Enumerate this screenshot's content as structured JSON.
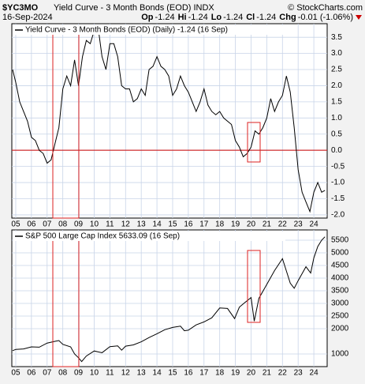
{
  "header": {
    "symbol": "$YC3MO",
    "name": "Yield Curve - 3 Month Bonds (EOD) INDX",
    "source": "© StockCharts.com",
    "date": "16-Sep-2024",
    "quote": [
      {
        "label": "Op",
        "value": "-1.24"
      },
      {
        "label": "Hi",
        "value": "-1.24"
      },
      {
        "label": "Lo",
        "value": "-1.24"
      },
      {
        "label": "Cl",
        "value": "-1.24"
      },
      {
        "label": "Chg",
        "value": "-0.01 (-1.06%)"
      }
    ]
  },
  "chart_data": [
    {
      "type": "line",
      "title": "Yield Curve - 3 Month Bonds (EOD) (Daily) -1.24 (16 Sep)",
      "color": "#000000",
      "grid": true,
      "hline": 0,
      "hline_color": "#cc0000",
      "xlim": [
        2004.75,
        2024.85
      ],
      "xticks": [
        {
          "value": 2005,
          "label": "05"
        },
        {
          "value": 2006,
          "label": "06"
        },
        {
          "value": 2007,
          "label": "07"
        },
        {
          "value": 2008,
          "label": "08"
        },
        {
          "value": 2009,
          "label": "09"
        },
        {
          "value": 2010,
          "label": "10"
        },
        {
          "value": 2011,
          "label": "11"
        },
        {
          "value": 2012,
          "label": "12"
        },
        {
          "value": 2013,
          "label": "13"
        },
        {
          "value": 2014,
          "label": "14"
        },
        {
          "value": 2015,
          "label": "15"
        },
        {
          "value": 2016,
          "label": "16"
        },
        {
          "value": 2017,
          "label": "17"
        },
        {
          "value": 2018,
          "label": "18"
        },
        {
          "value": 2019,
          "label": "19"
        },
        {
          "value": 2020,
          "label": "20"
        },
        {
          "value": 2021,
          "label": "21"
        },
        {
          "value": 2022,
          "label": "22"
        },
        {
          "value": 2023,
          "label": "23"
        },
        {
          "value": 2024,
          "label": "24"
        }
      ],
      "ylim": [
        -2.1,
        3.92
      ],
      "yticks": [
        3.5,
        {
          "value": 3,
          "label": "3.0"
        },
        2.5,
        {
          "value": 2,
          "label": "2.0"
        },
        1.5,
        {
          "value": 1,
          "label": "1.0"
        },
        0.5,
        {
          "value": 0,
          "label": "0.0"
        },
        -0.5,
        {
          "value": -1,
          "label": "-1.0"
        },
        -1.5,
        {
          "value": -2,
          "label": "-2.0"
        }
      ],
      "x": [
        2004.8,
        2005,
        2005.25,
        2005.5,
        2005.75,
        2006,
        2006.25,
        2006.5,
        2006.75,
        2007,
        2007.25,
        2007.5,
        2007.75,
        2008,
        2008.25,
        2008.5,
        2008.75,
        2009,
        2009.25,
        2009.5,
        2009.75,
        2010,
        2010.25,
        2010.5,
        2010.75,
        2011,
        2011.25,
        2011.5,
        2011.75,
        2012,
        2012.25,
        2012.5,
        2012.75,
        2013,
        2013.25,
        2013.5,
        2013.75,
        2014,
        2014.25,
        2014.5,
        2014.75,
        2015,
        2015.25,
        2015.5,
        2015.75,
        2016,
        2016.25,
        2016.5,
        2016.75,
        2017,
        2017.25,
        2017.5,
        2017.75,
        2018,
        2018.25,
        2018.5,
        2018.75,
        2019,
        2019.25,
        2019.5,
        2019.75,
        2020,
        2020.25,
        2020.5,
        2020.75,
        2021,
        2021.25,
        2021.5,
        2021.75,
        2022,
        2022.25,
        2022.5,
        2022.75,
        2023,
        2023.25,
        2023.5,
        2023.75,
        2024,
        2024.25,
        2024.5,
        2024.71
      ],
      "values": [
        2.5,
        2.1,
        1.5,
        1.2,
        0.9,
        0.4,
        0.3,
        0,
        -0.1,
        -0.4,
        -0.3,
        0.2,
        0.7,
        1.9,
        2.3,
        2,
        2.8,
        2,
        2.9,
        3.4,
        3.3,
        3.7,
        3.8,
        2.9,
        2.5,
        3.3,
        3.3,
        2.9,
        2,
        1.9,
        1.9,
        1.5,
        1.6,
        1.9,
        1.7,
        2.5,
        2.6,
        2.9,
        2.6,
        2.5,
        2.3,
        1.7,
        1.9,
        2.3,
        2,
        1.8,
        1.5,
        1.2,
        1.5,
        1.9,
        1.4,
        1.2,
        1.1,
        1.2,
        1,
        0.9,
        0.8,
        0.3,
        0.1,
        -0.2,
        -0.1,
        0.1,
        0.6,
        0.5,
        0.7,
        1,
        1.6,
        1.2,
        1.5,
        1.7,
        2.3,
        1.8,
        0.7,
        -0.6,
        -1.3,
        -1.6,
        -1.9,
        -1.3,
        -1,
        -1.3,
        -1.24
      ]
    },
    {
      "type": "line",
      "title": "S&P 500 Large Cap Index 5633.09 (16 Sep)",
      "color": "#000000",
      "grid": true,
      "xlim": [
        2004.75,
        2024.85
      ],
      "xticks": [
        {
          "value": 2005,
          "label": "05"
        },
        {
          "value": 2006,
          "label": "06"
        },
        {
          "value": 2007,
          "label": "07"
        },
        {
          "value": 2008,
          "label": "08"
        },
        {
          "value": 2009,
          "label": "09"
        },
        {
          "value": 2010,
          "label": "10"
        },
        {
          "value": 2011,
          "label": "11"
        },
        {
          "value": 2012,
          "label": "12"
        },
        {
          "value": 2013,
          "label": "13"
        },
        {
          "value": 2014,
          "label": "14"
        },
        {
          "value": 2015,
          "label": "15"
        },
        {
          "value": 2016,
          "label": "16"
        },
        {
          "value": 2017,
          "label": "17"
        },
        {
          "value": 2018,
          "label": "18"
        },
        {
          "value": 2019,
          "label": "19"
        },
        {
          "value": 2020,
          "label": "20"
        },
        {
          "value": 2021,
          "label": "21"
        },
        {
          "value": 2022,
          "label": "22"
        },
        {
          "value": 2023,
          "label": "23"
        },
        {
          "value": 2024,
          "label": "24"
        }
      ],
      "ylim": [
        500,
        5906
      ],
      "yticks": [
        5500,
        5000,
        4500,
        4000,
        3500,
        3000,
        2500,
        2000,
        1000
      ],
      "x": [
        2004.8,
        2005,
        2005.5,
        2006,
        2006.5,
        2007,
        2007.5,
        2007.75,
        2008,
        2008.5,
        2008.75,
        2009,
        2009.2,
        2009.5,
        2010,
        2010.5,
        2011,
        2011.5,
        2011.75,
        2012,
        2012.5,
        2013,
        2013.5,
        2014,
        2014.5,
        2015,
        2015.5,
        2015.75,
        2016,
        2016.5,
        2017,
        2017.5,
        2018,
        2018.5,
        2018.95,
        2019.25,
        2019.5,
        2020,
        2020.2,
        2020.5,
        2021,
        2021.5,
        2022,
        2022.5,
        2022.75,
        2023,
        2023.5,
        2023.8,
        2024,
        2024.25,
        2024.5,
        2024.71
      ],
      "values": [
        1130,
        1180,
        1200,
        1280,
        1270,
        1430,
        1500,
        1530,
        1380,
        1280,
        1000,
        850,
        700,
        920,
        1120,
        1050,
        1290,
        1320,
        1150,
        1310,
        1360,
        1480,
        1650,
        1800,
        1960,
        2050,
        2100,
        1920,
        1940,
        2150,
        2270,
        2430,
        2820,
        2800,
        2400,
        2850,
        2980,
        3230,
        2300,
        3200,
        3750,
        4300,
        4770,
        3800,
        3600,
        3900,
        4450,
        4200,
        4800,
        5250,
        5500,
        5633.09
      ]
    }
  ]
}
